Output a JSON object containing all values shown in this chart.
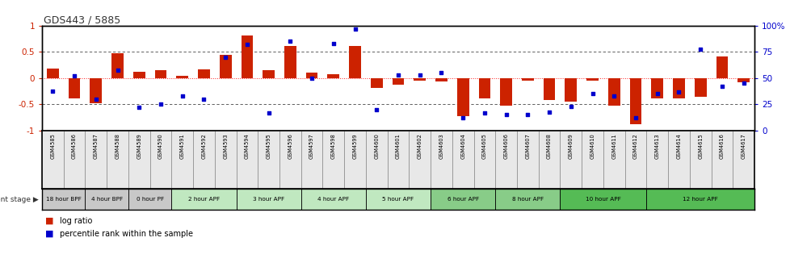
{
  "title": "GDS443 / 5885",
  "samples": [
    "GSM4585",
    "GSM4586",
    "GSM4587",
    "GSM4588",
    "GSM4589",
    "GSM4590",
    "GSM4591",
    "GSM4592",
    "GSM4593",
    "GSM4594",
    "GSM4595",
    "GSM4596",
    "GSM4597",
    "GSM4598",
    "GSM4599",
    "GSM4600",
    "GSM4601",
    "GSM4602",
    "GSM4603",
    "GSM4604",
    "GSM4605",
    "GSM4606",
    "GSM4607",
    "GSM4608",
    "GSM4609",
    "GSM4610",
    "GSM4611",
    "GSM4612",
    "GSM4613",
    "GSM4614",
    "GSM4615",
    "GSM4616",
    "GSM4617"
  ],
  "log_ratio": [
    0.18,
    -0.38,
    -0.48,
    0.47,
    0.13,
    0.16,
    0.04,
    0.17,
    0.44,
    0.82,
    0.15,
    0.62,
    0.1,
    0.08,
    0.62,
    -0.18,
    -0.12,
    -0.05,
    -0.06,
    -0.72,
    -0.38,
    -0.52,
    -0.05,
    -0.42,
    -0.45,
    -0.05,
    -0.52,
    -0.88,
    -0.38,
    -0.38,
    -0.35,
    0.42,
    -0.08
  ],
  "percentile_pct": [
    38,
    52,
    30,
    58,
    22,
    25,
    33,
    30,
    70,
    82,
    17,
    85,
    50,
    83,
    97,
    20,
    53,
    53,
    55,
    12,
    17,
    15,
    15,
    18,
    23,
    35,
    33,
    12,
    35,
    37,
    78,
    42,
    45
  ],
  "stage_groups": [
    {
      "label": "18 hour BPF",
      "start": 0,
      "end": 2,
      "color": "#c8c8c8"
    },
    {
      "label": "4 hour BPF",
      "start": 2,
      "end": 4,
      "color": "#c8c8c8"
    },
    {
      "label": "0 hour PF",
      "start": 4,
      "end": 6,
      "color": "#c8c8c8"
    },
    {
      "label": "2 hour APF",
      "start": 6,
      "end": 9,
      "color": "#c0e8c0"
    },
    {
      "label": "3 hour APF",
      "start": 9,
      "end": 12,
      "color": "#c0e8c0"
    },
    {
      "label": "4 hour APF",
      "start": 12,
      "end": 15,
      "color": "#c0e8c0"
    },
    {
      "label": "5 hour APF",
      "start": 15,
      "end": 18,
      "color": "#c0e8c0"
    },
    {
      "label": "6 hour APF",
      "start": 18,
      "end": 21,
      "color": "#88cc88"
    },
    {
      "label": "8 hour APF",
      "start": 21,
      "end": 24,
      "color": "#88cc88"
    },
    {
      "label": "10 hour APF",
      "start": 24,
      "end": 28,
      "color": "#55bb55"
    },
    {
      "label": "12 hour APF",
      "start": 28,
      "end": 33,
      "color": "#55bb55"
    }
  ],
  "bar_color": "#cc2200",
  "dot_color": "#0000cc",
  "ylim": [
    -1.0,
    1.0
  ],
  "y_ticks_left": [
    -1.0,
    -0.5,
    0.0,
    0.5,
    1.0
  ],
  "y_labels_left": [
    "-1",
    "-0.5",
    "0",
    "0.5",
    "1"
  ],
  "y_ticks_right_pct": [
    0,
    25,
    50,
    75,
    100
  ],
  "y_labels_right": [
    "0",
    "25",
    "50",
    "75",
    "100%"
  ]
}
